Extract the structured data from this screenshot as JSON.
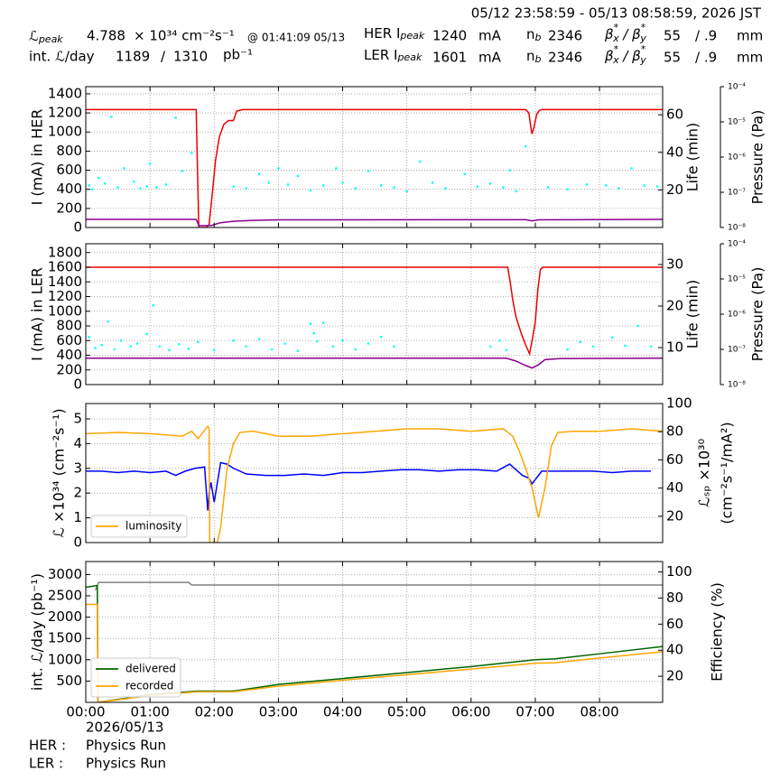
{
  "header": {
    "range": "05/12 23:58:59 - 05/13 08:58:59, 2026 JST",
    "lpeak": [
      "ℒ",
      "peak"
    ],
    "lpeak_value": 4.788,
    "lpeak_unit": "× 10³⁴ cm⁻²s⁻¹",
    "lpeak_time": "@ 01:41:09 05/13",
    "intl": "int. ℒ/day",
    "intl_recorded": 1189,
    "intl_sep": "/",
    "intl_delivered": 1310,
    "intl_unit": "pb⁻¹",
    "her_ipeak": [
      "HER I",
      "peak"
    ],
    "her_ipeak_value": 1240,
    "her_ipeak_unit": "mA",
    "her_nb": [
      "n",
      "b"
    ],
    "her_nb_value": 2346,
    "her_beta": [
      "β",
      "*",
      "x",
      " / β",
      "*",
      "y"
    ],
    "her_beta_x": 55,
    "her_beta_y": "/ .9",
    "her_beta_unit": "mm",
    "ler_ipeak": [
      "LER I",
      "peak"
    ],
    "ler_ipeak_value": 1601,
    "ler_ipeak_unit": "mA",
    "ler_nb": [
      "n",
      "b"
    ],
    "ler_nb_value": 2346,
    "ler_beta": [
      "β",
      "*",
      "x",
      " / β",
      "*",
      "y"
    ],
    "ler_beta_x": 55,
    "ler_beta_y": "/ .9",
    "ler_beta_unit": "mm"
  },
  "footer": {
    "date": "2026/05/13",
    "her": "HER :",
    "her_mode": "Physics Run",
    "ler": "LER :",
    "ler_mode": "Physics Run"
  },
  "chart_data": [
    {
      "type": "line",
      "ylabel": "I (mA) in HER",
      "y2label": "Life (min)",
      "y3label": "Pressure (Pa)",
      "grid": true,
      "xlim": [
        0,
        8.983
      ],
      "xticks": [
        0,
        1,
        2,
        3,
        4,
        5,
        6,
        7,
        8
      ],
      "ylim": [
        0,
        1475
      ],
      "yticks": [
        0,
        200,
        400,
        600,
        800,
        1000,
        1200,
        1400
      ],
      "y2lim": [
        0,
        75
      ],
      "y2ticks": [
        20,
        40,
        60
      ],
      "y3lim": [
        1e-08,
        0.0001
      ],
      "y3log": true,
      "y3ticks": [
        {
          "value": 1e-08,
          "label": "10⁻⁸"
        },
        {
          "value": 1e-07,
          "label": "10⁻⁷"
        },
        {
          "value": 1e-06,
          "label": "10⁻⁶"
        },
        {
          "value": 1e-05,
          "label": "10⁻⁵"
        },
        {
          "value": 0.0001,
          "label": "10⁻⁴"
        }
      ],
      "series": [
        {
          "color": "#00ffff",
          "mode": "markers",
          "x": [
            0.05,
            0.1,
            0.2,
            0.3,
            0.4,
            0.5,
            0.6,
            0.75,
            0.85,
            0.95,
            1.0,
            1.1,
            1.25,
            1.4,
            1.5,
            1.65,
            2.3,
            2.5,
            2.7,
            2.85,
            3.0,
            3.15,
            3.3,
            3.5,
            3.7,
            3.9,
            4.0,
            4.2,
            4.4,
            4.6,
            4.8,
            5.0,
            5.2,
            5.4,
            5.6,
            5.9,
            6.1,
            6.3,
            6.5,
            6.6,
            6.7,
            6.85,
            7.2,
            7.5,
            7.8,
            8.1,
            8.3,
            8.5,
            8.7,
            8.9
          ],
          "values": [
            440,
            400,
            520,
            460,
            1160,
            420,
            620,
            480,
            410,
            430,
            670,
            420,
            450,
            1150,
            590,
            780,
            430,
            410,
            560,
            470,
            620,
            450,
            540,
            390,
            440,
            620,
            470,
            410,
            590,
            440,
            420,
            380,
            690,
            470,
            410,
            560,
            430,
            460,
            420,
            600,
            380,
            850,
            420,
            400,
            450,
            440,
            410,
            620,
            440,
            430
          ]
        },
        {
          "color": "#ee0000",
          "mode": "lines",
          "x": [
            0,
            1.72,
            1.74,
            1.76,
            1.88,
            1.92,
            1.97,
            2.02,
            2.08,
            2.15,
            2.22,
            2.3,
            2.35,
            2.45,
            2.6,
            4,
            6.85,
            6.9,
            6.93,
            6.95,
            6.98,
            7.02,
            7.06,
            7.1,
            8.983
          ],
          "values": [
            1235,
            1235,
            600,
            0,
            0,
            30,
            350,
            700,
            950,
            1080,
            1120,
            1120,
            1220,
            1235,
            1235,
            1235,
            1235,
            1200,
            1050,
            980,
            1050,
            1180,
            1225,
            1235,
            1235
          ]
        },
        {
          "color": "#8b008b",
          "mode": "lines",
          "x": [
            0,
            1.72,
            1.76,
            1.95,
            2.1,
            2.3,
            2.6,
            3,
            6.85,
            6.95,
            7.05,
            8.983
          ],
          "values": [
            85,
            85,
            20,
            20,
            50,
            65,
            75,
            80,
            82,
            70,
            80,
            85
          ]
        }
      ]
    },
    {
      "type": "line",
      "ylabel": "I (mA) in LER",
      "y2label": "Life (min)",
      "y3label": "Pressure (Pa)",
      "grid": true,
      "xlim": [
        0,
        8.983
      ],
      "xticks": [
        0,
        1,
        2,
        3,
        4,
        5,
        6,
        7,
        8
      ],
      "ylim": [
        0,
        1920
      ],
      "yticks": [
        0,
        200,
        400,
        600,
        800,
        1000,
        1200,
        1400,
        1600,
        1800
      ],
      "y2lim": [
        1.1,
        35
      ],
      "y2ticks": [
        10,
        20,
        30
      ],
      "y3lim": [
        1e-08,
        0.0001
      ],
      "y3log": true,
      "y3ticks": [
        {
          "value": 1e-08,
          "label": "10⁻⁸"
        },
        {
          "value": 1e-07,
          "label": "10⁻⁷"
        },
        {
          "value": 1e-06,
          "label": "10⁻⁶"
        },
        {
          "value": 1e-05,
          "label": "10⁻⁵"
        },
        {
          "value": 0.0001,
          "label": "10⁻⁴"
        }
      ],
      "series": [
        {
          "color": "#00ffff",
          "mode": "markers",
          "x": [
            0.05,
            0.15,
            0.25,
            0.35,
            0.45,
            0.55,
            0.7,
            0.8,
            0.95,
            1.05,
            1.15,
            1.3,
            1.45,
            1.6,
            1.75,
            2.0,
            2.3,
            2.5,
            2.7,
            2.9,
            3.1,
            3.3,
            3.5,
            3.55,
            3.6,
            3.7,
            3.85,
            4.0,
            4.2,
            4.4,
            4.6,
            4.8,
            6.3,
            6.45,
            6.55,
            7.5,
            7.7,
            7.9,
            8.2,
            8.4,
            8.6,
            8.8
          ],
          "values": [
            650,
            500,
            540,
            860,
            480,
            600,
            520,
            560,
            690,
            1080,
            520,
            470,
            550,
            490,
            580,
            470,
            600,
            520,
            620,
            480,
            560,
            460,
            830,
            700,
            590,
            840,
            520,
            600,
            480,
            560,
            650,
            520,
            520,
            600,
            470,
            480,
            580,
            520,
            640,
            530,
            800,
            520
          ]
        },
        {
          "color": "#ee0000",
          "mode": "lines",
          "x": [
            0,
            6.57,
            6.6,
            6.65,
            6.7,
            6.78,
            6.85,
            6.91,
            6.95,
            7.0,
            7.04,
            7.08,
            7.12,
            8.983
          ],
          "values": [
            1600,
            1600,
            1450,
            1150,
            920,
            700,
            540,
            420,
            600,
            850,
            1300,
            1570,
            1600,
            1600
          ]
        },
        {
          "color": "#8b008b",
          "mode": "lines",
          "x": [
            0,
            6.55,
            6.7,
            6.85,
            6.95,
            7.05,
            7.15,
            7.4,
            8.983
          ],
          "values": [
            360,
            360,
            320,
            260,
            225,
            270,
            340,
            355,
            360
          ]
        }
      ]
    },
    {
      "type": "line",
      "ylabel": "ℒ ×10³⁴ (cm⁻²s⁻¹)",
      "y2label": [
        "ℒₛₚ ×10³⁰",
        "(cm⁻²s⁻¹/mA²)"
      ],
      "grid": true,
      "legend": "lower left",
      "xlim": [
        0,
        8.983
      ],
      "xticks": [
        0,
        1,
        2,
        3,
        4,
        5,
        6,
        7,
        8
      ],
      "ylim": [
        0,
        5.62
      ],
      "yticks": [
        0,
        1,
        2,
        3,
        4,
        5
      ],
      "y2lim": [
        1.3,
        100
      ],
      "y2ticks": [
        20,
        40,
        60,
        80,
        100
      ],
      "series": [
        {
          "color": "#0000ff",
          "mode": "lines",
          "axis": "y2",
          "x": [
            0,
            0.25,
            0.5,
            0.75,
            1.0,
            1.25,
            1.4,
            1.55,
            1.7,
            1.85,
            1.9,
            1.92,
            1.95,
            2.0,
            2.1,
            2.2,
            2.3,
            2.5,
            2.8,
            3.1,
            3.4,
            3.7,
            4.0,
            4.3,
            4.6,
            4.9,
            5.2,
            5.5,
            5.8,
            6.1,
            6.4,
            6.6,
            6.7,
            6.8,
            6.9,
            6.95,
            7.1,
            7.3,
            7.6,
            7.9,
            8.2,
            8.5,
            8.8
          ],
          "values": [
            52,
            52,
            51,
            52,
            51,
            52,
            49,
            52,
            54,
            55,
            24,
            36,
            44,
            30,
            58,
            57,
            54,
            50,
            49,
            49,
            50,
            49,
            51,
            51,
            52,
            53,
            53,
            52,
            53,
            53,
            52,
            57,
            53,
            49,
            47,
            43,
            52,
            52,
            52,
            52,
            51,
            52,
            52
          ]
        },
        {
          "name": "luminosity",
          "color": "#ffa500",
          "mode": "lines",
          "x": [
            0,
            0.5,
            1.0,
            1.5,
            1.65,
            1.75,
            1.9,
            1.92,
            1.93,
            2.05,
            2.1,
            2.15,
            2.2,
            2.3,
            2.4,
            2.6,
            3.0,
            3.5,
            4.0,
            4.5,
            5.0,
            5.5,
            6.0,
            6.5,
            6.65,
            6.75,
            6.85,
            6.95,
            7.05,
            7.15,
            7.25,
            7.35,
            7.6,
            8.0,
            8.5,
            8.983
          ],
          "values": [
            4.4,
            4.45,
            4.4,
            4.3,
            4.5,
            4.2,
            4.7,
            4.6,
            0,
            0,
            0.6,
            1.8,
            3.0,
            4.0,
            4.45,
            4.5,
            4.3,
            4.3,
            4.4,
            4.5,
            4.6,
            4.6,
            4.5,
            4.6,
            4.3,
            3.7,
            3.0,
            2.2,
            1.0,
            2.2,
            3.9,
            4.45,
            4.5,
            4.5,
            4.6,
            4.5
          ]
        }
      ]
    },
    {
      "type": "line",
      "ylabel": "int. ℒ/day (pb⁻¹)",
      "y2label": "Efficiency (%)",
      "grid": true,
      "legend": "lower left",
      "xlim": [
        0,
        8.983
      ],
      "xticks": [
        {
          "value": 0,
          "label": "00:00"
        },
        {
          "value": 1,
          "label": "01:00"
        },
        {
          "value": 2,
          "label": "02:00"
        },
        {
          "value": 3,
          "label": "03:00"
        },
        {
          "value": 4,
          "label": "04:00"
        },
        {
          "value": 5,
          "label": "05:00"
        },
        {
          "value": 6,
          "label": "06:00"
        },
        {
          "value": 7,
          "label": "07:00"
        },
        {
          "value": 8,
          "label": "08:00"
        }
      ],
      "ylim": [
        0,
        3305
      ],
      "yticks": [
        500,
        1000,
        1500,
        2000,
        2500,
        3000
      ],
      "y2lim": [
        0,
        108
      ],
      "y2ticks": [
        20,
        40,
        60,
        80,
        100
      ],
      "series": [
        {
          "color": "#808080",
          "mode": "lines",
          "axis": "y2",
          "x": [
            0.15,
            0.2,
            1.6,
            1.65,
            8.983
          ],
          "values": [
            86,
            92,
            92,
            90,
            90
          ]
        },
        {
          "name": "delivered",
          "color": "#006400",
          "mode": "lines",
          "x": [
            0,
            0.17,
            0.18,
            0.19,
            1.0,
            1.74,
            2.3,
            3,
            4,
            5,
            6,
            7,
            7.3,
            8,
            8.983
          ],
          "values": [
            2700,
            2740,
            2740,
            0,
            180,
            265,
            265,
            420,
            560,
            700,
            840,
            1000,
            1020,
            1140,
            1310
          ]
        },
        {
          "name": "recorded",
          "color": "#ffa500",
          "mode": "lines",
          "x": [
            0,
            0.17,
            0.18,
            0.19,
            1.0,
            1.74,
            2.3,
            3,
            4,
            5,
            6,
            7,
            7.3,
            8,
            8.983
          ],
          "values": [
            2300,
            2300,
            2300,
            0,
            160,
            250,
            250,
            380,
            520,
            650,
            780,
            920,
            930,
            1040,
            1189
          ]
        }
      ]
    }
  ]
}
